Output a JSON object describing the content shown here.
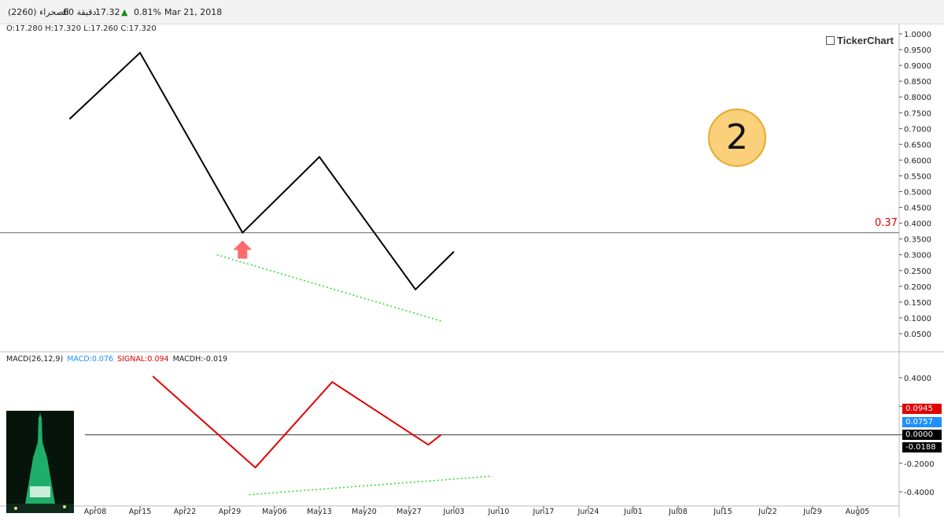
{
  "header": {
    "symbol": "الصحراء (2260)",
    "interval": "60 دقيقة",
    "last": "17.32",
    "change_pct": "0.81%",
    "date": "Mar 21, 2018",
    "ohlc": "O:17.280 H:17.320 L:17.260 C:17.320"
  },
  "brand": "TickerChart",
  "annotation_number": "2",
  "level_label": "0.37",
  "macd_legend": {
    "name": "MACD(26,12,9)",
    "macd": "MACD:0.076",
    "signal": "SIGNAL:0.094",
    "macdh": "MACDH:-0.019"
  },
  "badges": [
    {
      "text": "0.0945",
      "bg": "#e00000",
      "fg": "#ffffff"
    },
    {
      "text": "0.0757",
      "bg": "#1e90ff",
      "fg": "#ffffff"
    },
    {
      "text": "0.0000",
      "bg": "#000000",
      "fg": "#ffffff"
    },
    {
      "text": "-0.0188",
      "bg": "#000000",
      "fg": "#ffffff"
    }
  ],
  "colors": {
    "price_line": "#000000",
    "macd_line": "#e00000",
    "trend_dotted": "#33dd33",
    "arrow": "#ff6b6b",
    "macd_label": "#1e90ff",
    "signal_label": "#e00000"
  },
  "chart_data": [
    {
      "type": "line",
      "title": "",
      "xlabel": "",
      "ylabel": "",
      "ylim": [
        0.02,
        1.01
      ],
      "yticks": [
        "1.0000",
        "0.9500",
        "0.9000",
        "0.8500",
        "0.8000",
        "0.7500",
        "0.7000",
        "0.6500",
        "0.6000",
        "0.5500",
        "0.5000",
        "0.4500",
        "0.4000",
        "0.3500",
        "0.3000",
        "0.2500",
        "0.2000",
        "0.1500",
        "0.1000",
        "0.0500"
      ],
      "series": [
        {
          "x": [
            "2018-04-04",
            "2018-04-15",
            "2018-05-01",
            "2018-05-13",
            "2018-05-28",
            "2018-06-03"
          ],
          "values": [
            0.73,
            0.94,
            0.37,
            0.61,
            0.19,
            0.31
          ]
        }
      ],
      "trendline": {
        "x": [
          "2018-04-27",
          "2018-06-01"
        ],
        "values": [
          0.3,
          0.09
        ]
      },
      "horizontal_line": 0.37,
      "marker": {
        "type": "up-arrow",
        "x": "2018-05-01",
        "y": 0.37
      }
    },
    {
      "type": "line",
      "title": "",
      "ylim": [
        -0.45,
        0.45
      ],
      "yticks": [
        "0.4000",
        "0.2000",
        "0.0000",
        "-0.2000",
        "-0.4000"
      ],
      "xticks": [
        "Apr08",
        "Apr15",
        "Apr22",
        "Apr29",
        "May06",
        "May13",
        "May20",
        "May27",
        "Jun03",
        "Jun10",
        "Jun17",
        "Jun24",
        "Jul01",
        "Jul08",
        "Jul15",
        "Jul22",
        "Jul29",
        "Aug05"
      ],
      "series": [
        {
          "x": [
            "2018-04-17",
            "2018-05-03",
            "2018-05-15",
            "2018-05-30",
            "2018-06-01"
          ],
          "values": [
            0.41,
            -0.23,
            0.37,
            -0.07,
            0.0
          ]
        }
      ],
      "trendline": {
        "x": [
          "2018-05-02",
          "2018-06-09"
        ],
        "values": [
          -0.42,
          -0.29
        ]
      },
      "horizontal_line": 0.0
    }
  ]
}
